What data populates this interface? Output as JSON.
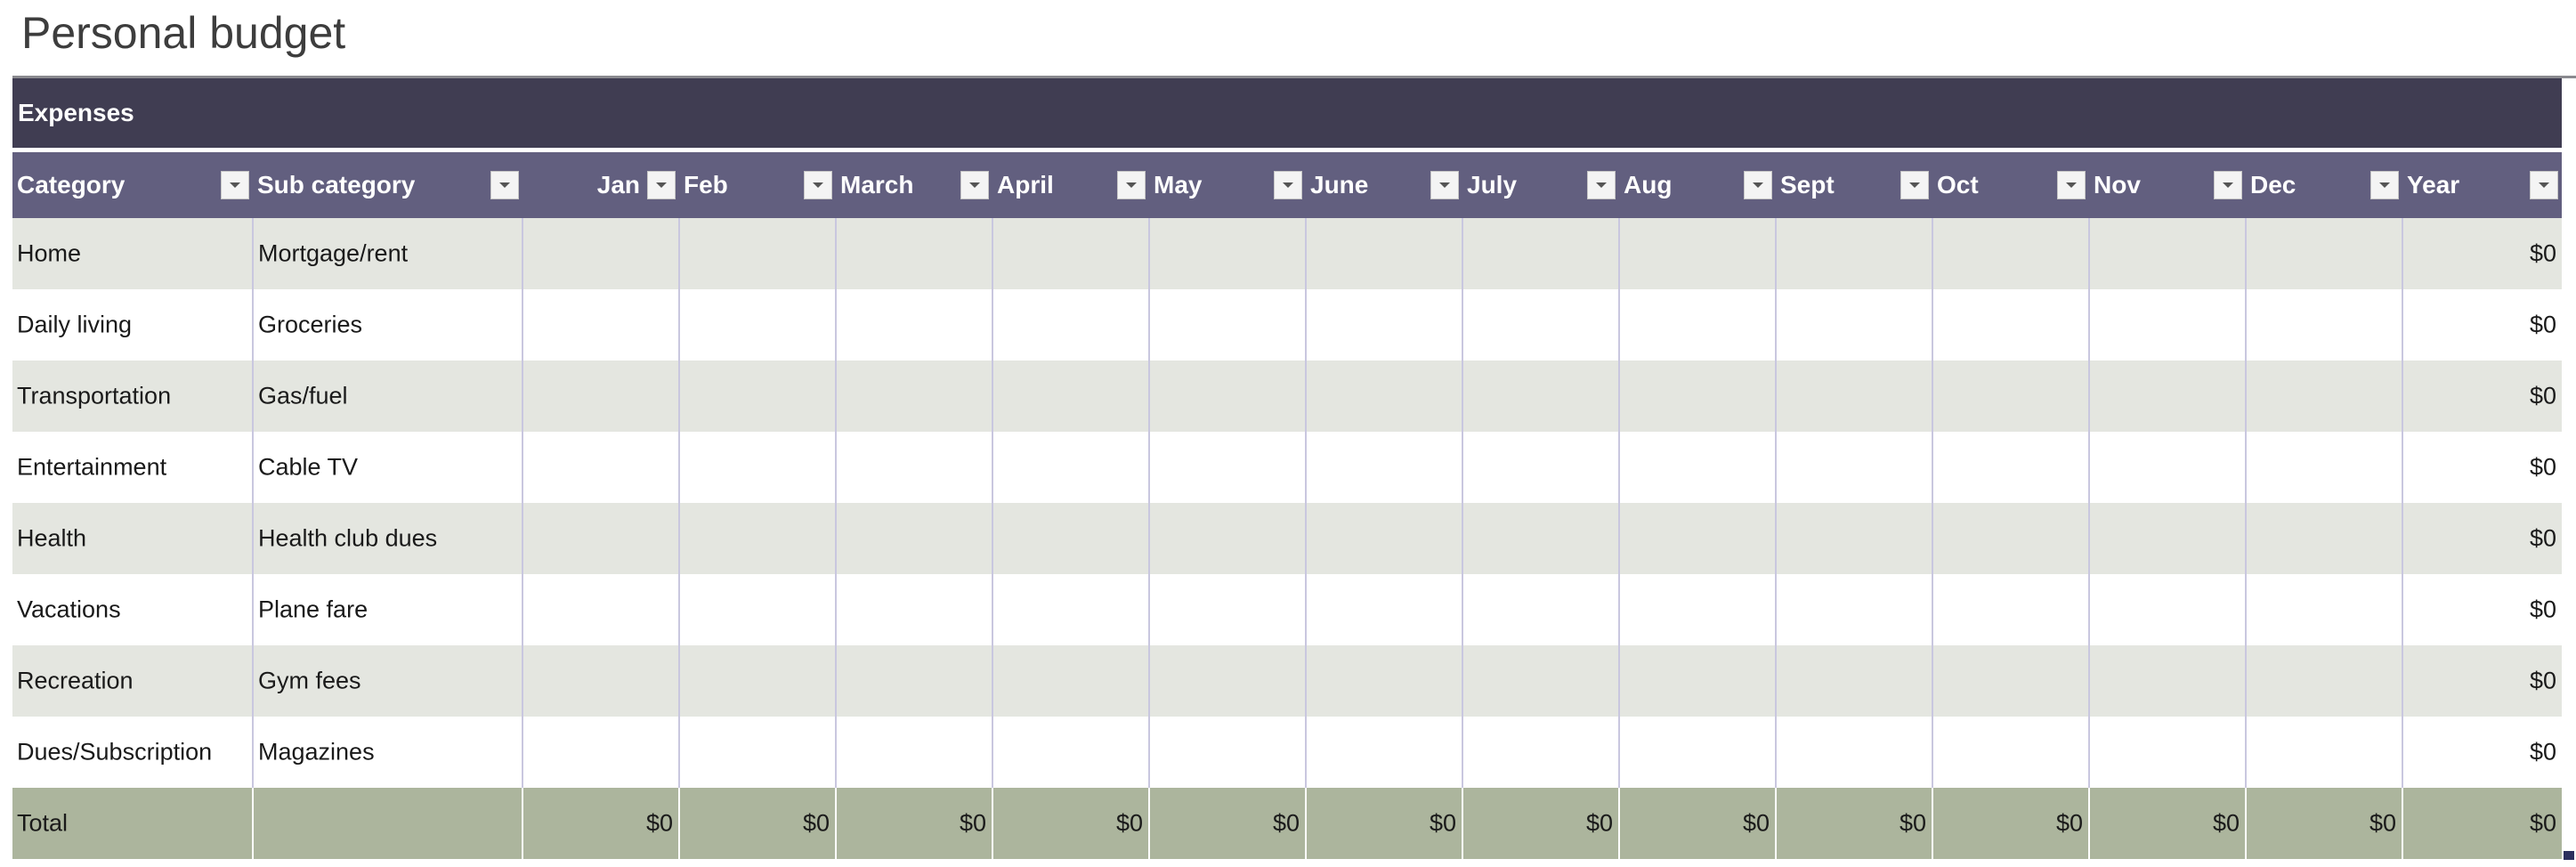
{
  "page": {
    "title": "Personal budget"
  },
  "section": {
    "label": "Expenses"
  },
  "columns": {
    "category": "Category",
    "subcategory": "Sub category",
    "jan": "Jan",
    "feb": "Feb",
    "mar": "March",
    "apr": "April",
    "may": "May",
    "jun": "June",
    "jul": "July",
    "aug": "Aug",
    "sep": "Sept",
    "oct": "Oct",
    "nov": "Nov",
    "dec": "Dec",
    "year": "Year"
  },
  "rows": [
    {
      "category": "Home",
      "subcategory": "Mortgage/rent",
      "year": "$0"
    },
    {
      "category": "Daily living",
      "subcategory": "Groceries",
      "year": "$0"
    },
    {
      "category": "Transportation",
      "subcategory": "Gas/fuel",
      "year": "$0"
    },
    {
      "category": "Entertainment",
      "subcategory": "Cable TV",
      "year": "$0"
    },
    {
      "category": "Health",
      "subcategory": "Health club dues",
      "year": "$0"
    },
    {
      "category": "Vacations",
      "subcategory": "Plane fare",
      "year": "$0"
    },
    {
      "category": "Recreation",
      "subcategory": "Gym fees",
      "year": "$0"
    },
    {
      "category": "Dues/Subscription",
      "subcategory": "Magazines",
      "year": "$0"
    }
  ],
  "total": {
    "label": "Total",
    "jan": "$0",
    "feb": "$0",
    "mar": "$0",
    "apr": "$0",
    "may": "$0",
    "jun": "$0",
    "jul": "$0",
    "aug": "$0",
    "sep": "$0",
    "oct": "$0",
    "nov": "$0",
    "dec": "$0",
    "year": "$0"
  },
  "icons": {
    "filter": "filter-dropdown-arrow-icon"
  },
  "colors": {
    "section_header_bg": "#403d52",
    "column_header_bg": "#625f7f",
    "band_row_bg": "#e4e6e0",
    "total_row_bg": "#acb59d"
  }
}
